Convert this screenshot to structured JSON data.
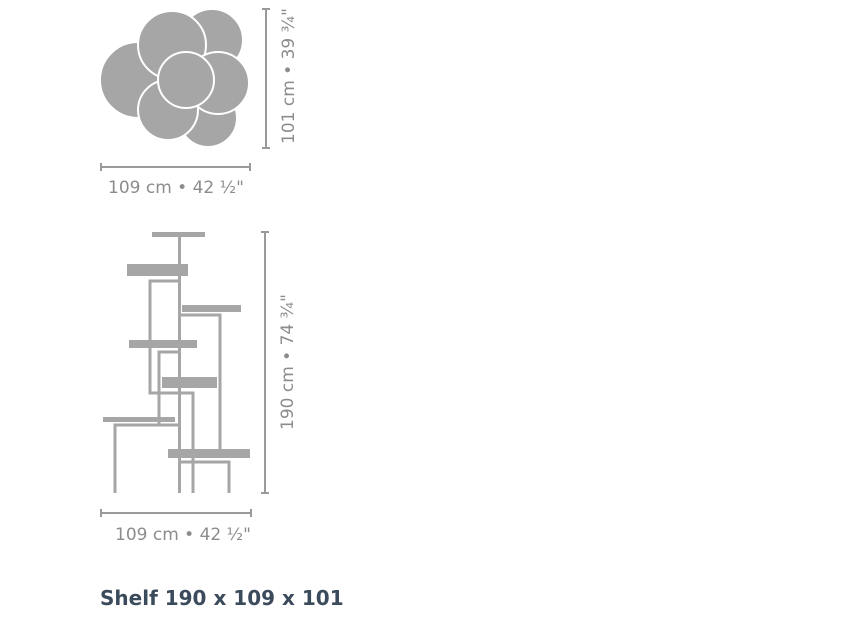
{
  "top_view": {
    "width_label": "109 cm • 42 ½\"",
    "depth_label": "101 cm • 39 ¾\""
  },
  "side_view": {
    "width_label": "109 cm • 42 ½\"",
    "height_label": "190 cm • 74 ¾\""
  },
  "product_title": "Shelf 190 x 109 x 101",
  "colors": {
    "shape": "#a6a6a6",
    "dimension_text": "#8c8c8c",
    "title": "#3c4b5c"
  }
}
